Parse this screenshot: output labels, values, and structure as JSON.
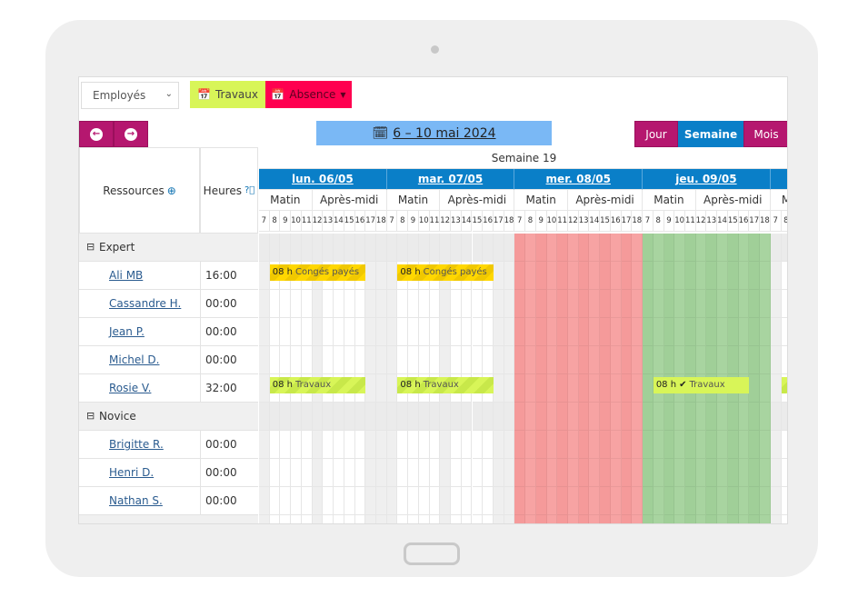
{
  "toolbar": {
    "resource_select": "Employés",
    "travaux_label": "Travaux",
    "absence_label": "Absence",
    "date_range": "6 – 10 mai 2024",
    "views": [
      "Jour",
      "Semaine",
      "Mois"
    ],
    "active_view": "Semaine"
  },
  "colors": {
    "travaux": "#d8f558",
    "absence": "#ff0050",
    "nav": "#b5176f",
    "day_header": "#0a7fc8",
    "date_button": "#7ab8f5",
    "closed_day": "#f7a3a3",
    "holiday_day": "#a8d4a0",
    "conges": "#ffd700"
  },
  "header": {
    "resources_label": "Ressources",
    "hours_label": "Heures",
    "week_label": "Semaine 19"
  },
  "days": [
    {
      "label": "lun. 06/05"
    },
    {
      "label": "mar. 07/05"
    },
    {
      "label": "mer. 08/05"
    },
    {
      "label": "jeu. 09/05"
    },
    {
      "label": ""
    }
  ],
  "half_days": [
    "Matin",
    "Après-midi"
  ],
  "hours": [
    "7",
    "8",
    "9",
    "10",
    "11",
    "12",
    "13",
    "14",
    "15",
    "16",
    "17",
    "18"
  ],
  "groups": [
    {
      "name": "Expert",
      "rows": [
        {
          "name": "Ali MB",
          "hours": "16:00"
        },
        {
          "name": "Cassandre H.",
          "hours": "00:00"
        },
        {
          "name": "Jean P.",
          "hours": "00:00"
        },
        {
          "name": "Michel D.",
          "hours": "00:00"
        },
        {
          "name": "Rosie V.",
          "hours": "32:00"
        }
      ]
    },
    {
      "name": "Novice",
      "rows": [
        {
          "name": "Brigitte R.",
          "hours": "00:00"
        },
        {
          "name": "Henri D.",
          "hours": "00:00"
        },
        {
          "name": "Nathan S.",
          "hours": "00:00"
        }
      ]
    }
  ],
  "events": [
    {
      "row": 1,
      "day": 0,
      "duration": "08 h",
      "label": "Congés payés",
      "type": "conges"
    },
    {
      "row": 1,
      "day": 1,
      "duration": "08 h",
      "label": "Congés payés",
      "type": "conges"
    },
    {
      "row": 5,
      "day": 0,
      "duration": "08 h",
      "label": "Travaux",
      "type": "travaux"
    },
    {
      "row": 5,
      "day": 1,
      "duration": "08 h",
      "label": "Travaux",
      "type": "travaux"
    },
    {
      "row": 5,
      "day": 3,
      "duration": "08 h",
      "label": "Travaux",
      "type": "travaux-validated"
    },
    {
      "row": 5,
      "day": 4,
      "duration": "0",
      "label": "",
      "type": "travaux"
    }
  ]
}
